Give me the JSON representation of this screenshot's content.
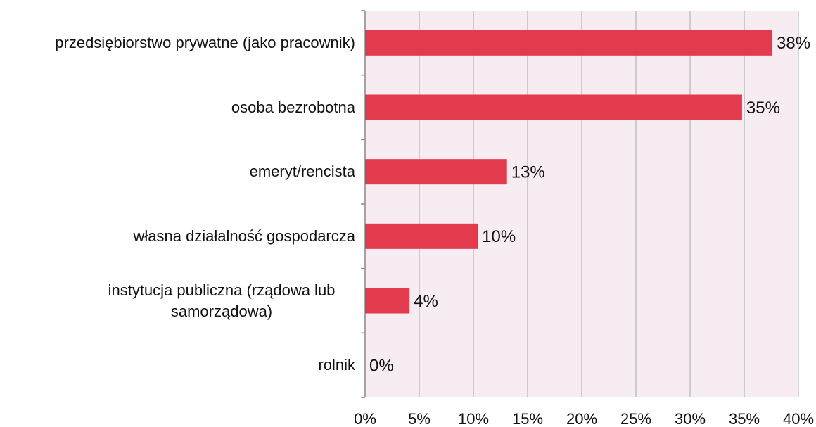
{
  "chart_data": {
    "type": "bar",
    "orientation": "horizontal",
    "categories": [
      "przedsiębiorstwo prywatne (jako pracownik)",
      "osoba bezrobotna",
      "emeryt/rencista",
      "własna działalność gospodarcza",
      "instytucja publiczna (rządowa lub samorządowa)",
      "rolnik"
    ],
    "values": [
      37.6,
      34.8,
      13.1,
      10.4,
      4.1,
      0
    ],
    "value_labels": [
      "38%",
      "35%",
      "13%",
      "10%",
      "4%",
      "0%"
    ],
    "color": "#e23b4e",
    "xlim": [
      0,
      40
    ],
    "xticks": [
      {
        "value": 0,
        "label": "0%"
      },
      {
        "value": 5,
        "label": "5%"
      },
      {
        "value": 10,
        "label": "10%"
      },
      {
        "value": 15,
        "label": "15%"
      },
      {
        "value": 20,
        "label": "20%"
      },
      {
        "value": 25,
        "label": "25%"
      },
      {
        "value": 30,
        "label": "30%"
      },
      {
        "value": 35,
        "label": "35%"
      },
      {
        "value": 40,
        "label": "40%"
      }
    ],
    "grid": true
  }
}
